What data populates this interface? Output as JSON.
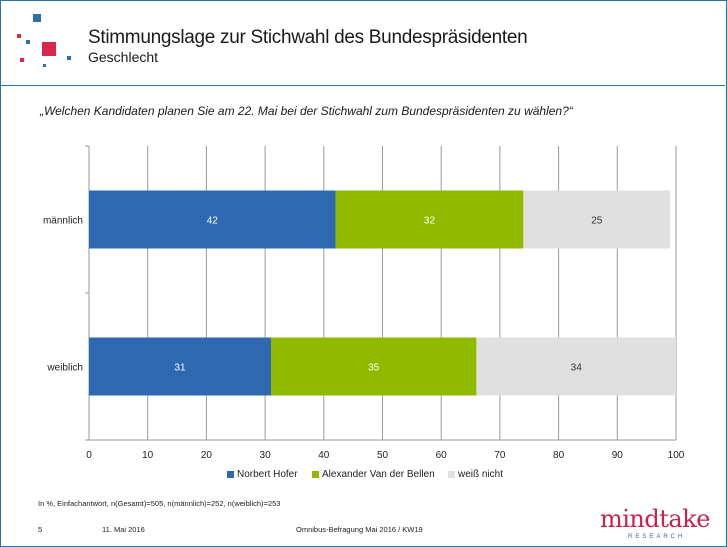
{
  "header": {
    "title": "Stimmungslage zur Stichwahl des Bundespräsidenten",
    "subtitle": "Geschlecht"
  },
  "question": "„Welchen Kandidaten planen Sie am 22. Mai bei der Stichwahl zum Bundespräsidenten zu wählen?“",
  "chart_data": {
    "type": "bar",
    "orientation": "horizontal",
    "stacked": true,
    "categories": [
      "männlich",
      "weiblich"
    ],
    "series": [
      {
        "name": "Norbert Hofer",
        "values": [
          42,
          31
        ],
        "labels": [
          "42",
          "31"
        ],
        "color": "#2e68b0"
      },
      {
        "name": "Alexander Van der Bellen",
        "values": [
          32,
          35
        ],
        "labels": [
          "32",
          "35"
        ],
        "color": "#8fba00"
      },
      {
        "name": "weiß nicht",
        "values": [
          25,
          34
        ],
        "labels": [
          "25",
          "34"
        ],
        "color": "#e0e0e0"
      }
    ],
    "xlim": [
      0,
      100
    ],
    "xticks": [
      "0",
      "10",
      "20",
      "30",
      "40",
      "50",
      "60",
      "70",
      "80",
      "90",
      "100"
    ],
    "grid": true,
    "legend_position": "bottom"
  },
  "footnote": "In %, Einfachantwort, n(Gesamt)=505, n(männlich)=252, n(weiblich)=253",
  "footer": {
    "page": "5",
    "date": "11. Mai 2016",
    "source": "Omnibus-Befragung Mai 2016 / KW19"
  },
  "brand": {
    "name": "mindtake",
    "tagline": "RESEARCH"
  },
  "colors": {
    "frame": "#2f6fa8",
    "brand_red": "#c8234a",
    "logo_blue": "#2f6fa8",
    "logo_red": "#d8264c"
  }
}
